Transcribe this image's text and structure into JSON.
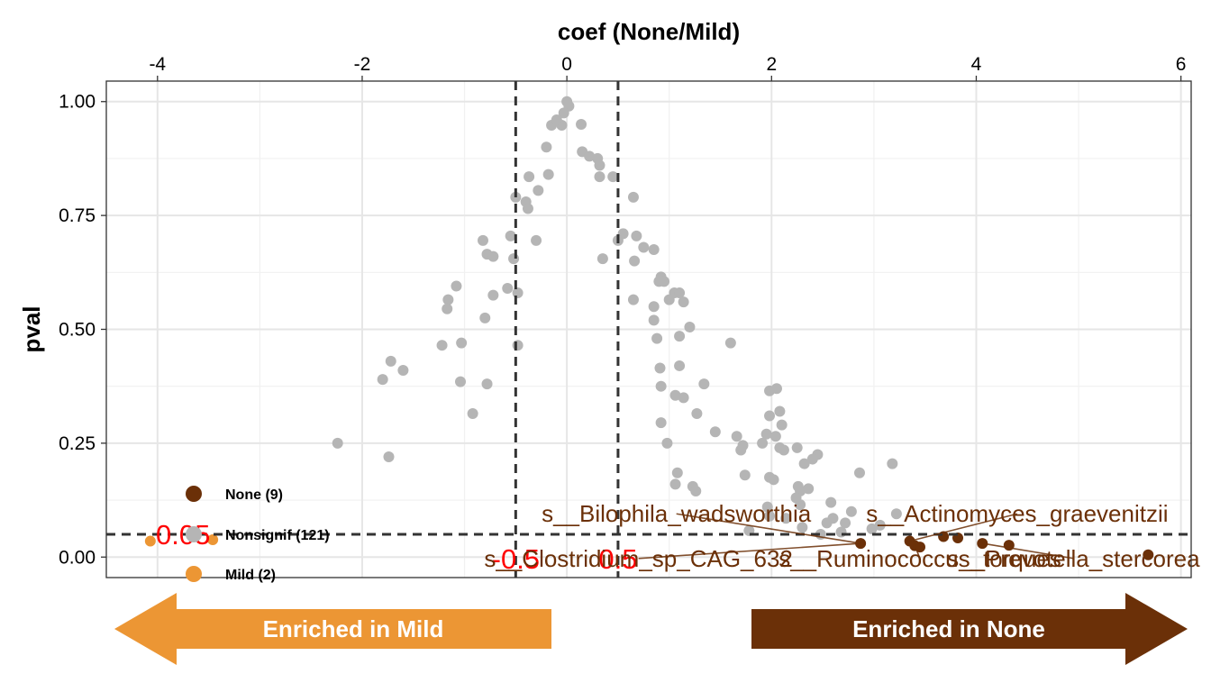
{
  "chart_data": {
    "type": "scatter",
    "title": "",
    "xlabel": "coef (None/Mild)",
    "ylabel": "pval",
    "xlim": [
      -4.5,
      6.1
    ],
    "ylim": [
      -0.045,
      1.045
    ],
    "x_ticks": [
      "-4",
      "-2",
      "0",
      "2",
      "4",
      "6"
    ],
    "y_ticks": [
      "0.00",
      "0.25",
      "0.50",
      "0.75",
      "1.00"
    ],
    "grid": true,
    "x_axis_position": "top",
    "legend_position": "bottom-left",
    "thresholds": {
      "pval": 0.05,
      "pval_label": "0.05",
      "coef_low": -0.5,
      "coef_low_label": "-0.5",
      "coef_high": 0.5,
      "coef_high_label": "0.5",
      "label_color": "#ff0000"
    },
    "colors": {
      "None": "#6b3008",
      "Nonsignif": "#b5b5b5",
      "Mild": "#ec9634"
    },
    "series": [
      {
        "name": "None (9)",
        "key": "None",
        "points": [
          [
            2.87,
            0.03
          ],
          [
            3.35,
            0.035
          ],
          [
            3.4,
            0.025
          ],
          [
            3.45,
            0.022
          ],
          [
            3.68,
            0.045
          ],
          [
            3.82,
            0.042
          ],
          [
            4.06,
            0.03
          ],
          [
            4.32,
            0.026
          ],
          [
            5.68,
            0.005
          ]
        ]
      },
      {
        "name": "Nonsignif (121)",
        "key": "Nonsignif",
        "points": [
          [
            0.0,
            1.0
          ],
          [
            0.02,
            0.99
          ],
          [
            -0.03,
            0.975
          ],
          [
            0.14,
            0.95
          ],
          [
            -0.15,
            0.948
          ],
          [
            -0.05,
            0.948
          ],
          [
            -0.1,
            0.96
          ],
          [
            0.15,
            0.89
          ],
          [
            0.3,
            0.875
          ],
          [
            0.22,
            0.88
          ],
          [
            0.32,
            0.86
          ],
          [
            -0.2,
            0.9
          ],
          [
            0.45,
            0.835
          ],
          [
            0.32,
            0.835
          ],
          [
            -0.37,
            0.835
          ],
          [
            -0.18,
            0.84
          ],
          [
            -0.28,
            0.805
          ],
          [
            -0.4,
            0.78
          ],
          [
            -0.5,
            0.79
          ],
          [
            -0.38,
            0.765
          ],
          [
            0.65,
            0.79
          ],
          [
            0.55,
            0.71
          ],
          [
            0.68,
            0.705
          ],
          [
            0.5,
            0.695
          ],
          [
            0.75,
            0.68
          ],
          [
            0.85,
            0.675
          ],
          [
            -0.55,
            0.705
          ],
          [
            -0.3,
            0.695
          ],
          [
            -0.82,
            0.695
          ],
          [
            -0.78,
            0.665
          ],
          [
            -0.72,
            0.66
          ],
          [
            -0.52,
            0.655
          ],
          [
            0.35,
            0.655
          ],
          [
            0.66,
            0.65
          ],
          [
            0.92,
            0.615
          ],
          [
            0.9,
            0.605
          ],
          [
            0.95,
            0.605
          ],
          [
            -0.58,
            0.59
          ],
          [
            -0.48,
            0.58
          ],
          [
            -0.72,
            0.575
          ],
          [
            -1.08,
            0.595
          ],
          [
            -1.16,
            0.565
          ],
          [
            1.05,
            0.58
          ],
          [
            1.1,
            0.58
          ],
          [
            1.0,
            0.565
          ],
          [
            0.65,
            0.565
          ],
          [
            1.14,
            0.56
          ],
          [
            0.85,
            0.55
          ],
          [
            -1.17,
            0.545
          ],
          [
            -0.8,
            0.525
          ],
          [
            0.85,
            0.52
          ],
          [
            1.2,
            0.505
          ],
          [
            1.1,
            0.485
          ],
          [
            0.88,
            0.48
          ],
          [
            1.6,
            0.47
          ],
          [
            -1.22,
            0.465
          ],
          [
            -1.03,
            0.47
          ],
          [
            -0.48,
            0.465
          ],
          [
            -1.72,
            0.43
          ],
          [
            -1.6,
            0.41
          ],
          [
            -1.8,
            0.39
          ],
          [
            0.91,
            0.415
          ],
          [
            1.1,
            0.42
          ],
          [
            -1.04,
            0.385
          ],
          [
            -0.78,
            0.38
          ],
          [
            0.92,
            0.375
          ],
          [
            1.34,
            0.38
          ],
          [
            1.06,
            0.355
          ],
          [
            1.14,
            0.35
          ],
          [
            1.98,
            0.365
          ],
          [
            2.05,
            0.37
          ],
          [
            2.08,
            0.32
          ],
          [
            1.98,
            0.31
          ],
          [
            2.1,
            0.29
          ],
          [
            -0.92,
            0.315
          ],
          [
            1.27,
            0.315
          ],
          [
            0.92,
            0.295
          ],
          [
            1.45,
            0.275
          ],
          [
            1.66,
            0.265
          ],
          [
            1.95,
            0.27
          ],
          [
            2.04,
            0.265
          ],
          [
            1.72,
            0.245
          ],
          [
            1.7,
            0.235
          ],
          [
            1.91,
            0.25
          ],
          [
            2.08,
            0.24
          ],
          [
            2.12,
            0.235
          ],
          [
            2.25,
            0.24
          ],
          [
            0.98,
            0.25
          ],
          [
            -2.24,
            0.25
          ],
          [
            2.45,
            0.225
          ],
          [
            2.4,
            0.215
          ],
          [
            2.32,
            0.205
          ],
          [
            3.18,
            0.205
          ],
          [
            -1.74,
            0.22
          ],
          [
            2.86,
            0.185
          ],
          [
            1.08,
            0.185
          ],
          [
            1.74,
            0.18
          ],
          [
            1.98,
            0.175
          ],
          [
            2.02,
            0.17
          ],
          [
            2.26,
            0.155
          ],
          [
            2.36,
            0.15
          ],
          [
            2.28,
            0.145
          ],
          [
            1.06,
            0.16
          ],
          [
            1.23,
            0.155
          ],
          [
            1.26,
            0.145
          ],
          [
            2.24,
            0.13
          ],
          [
            2.58,
            0.12
          ],
          [
            2.28,
            0.115
          ],
          [
            1.96,
            0.11
          ],
          [
            2.78,
            0.1
          ],
          [
            3.22,
            0.095
          ],
          [
            1.98,
            0.09
          ],
          [
            2.14,
            0.085
          ],
          [
            2.6,
            0.085
          ],
          [
            2.72,
            0.075
          ],
          [
            2.54,
            0.075
          ],
          [
            3.06,
            0.07
          ],
          [
            2.3,
            0.065
          ],
          [
            2.98,
            0.062
          ],
          [
            1.78,
            0.058
          ],
          [
            2.68,
            0.055
          ],
          [
            2.48,
            0.05
          ]
        ]
      },
      {
        "name": "Mild (2)",
        "key": "Mild",
        "points": [
          [
            -4.07,
            0.035
          ],
          [
            -3.46,
            0.038
          ]
        ]
      }
    ],
    "annotations": [
      {
        "text": "s__Bilophila_wadsworthia",
        "tx": 1.07,
        "ty": 0.095,
        "px": 2.87,
        "py": 0.03
      },
      {
        "text": "s__Actinomyces_graevenitzii",
        "tx": 4.4,
        "ty": 0.095,
        "px": 3.35,
        "py": 0.035
      },
      {
        "text": "s__Clostridium_sp_CAG_632",
        "tx": 0.7,
        "ty": -0.003,
        "px": 2.87,
        "py": 0.03
      },
      {
        "text": "s__Ruminococcus_torques",
        "tx": 3.45,
        "ty": -0.003,
        "px": 3.4,
        "py": 0.025
      },
      {
        "text": "s__Prevotella_stercorea",
        "tx": 4.95,
        "ty": -0.003,
        "px": 4.06,
        "py": 0.03
      }
    ]
  },
  "arrows": {
    "left_label": "Enriched in Mild",
    "left_color": "#ec9634",
    "right_label": "Enriched in None",
    "right_color": "#6b3008",
    "text_color": "#ffffff"
  }
}
